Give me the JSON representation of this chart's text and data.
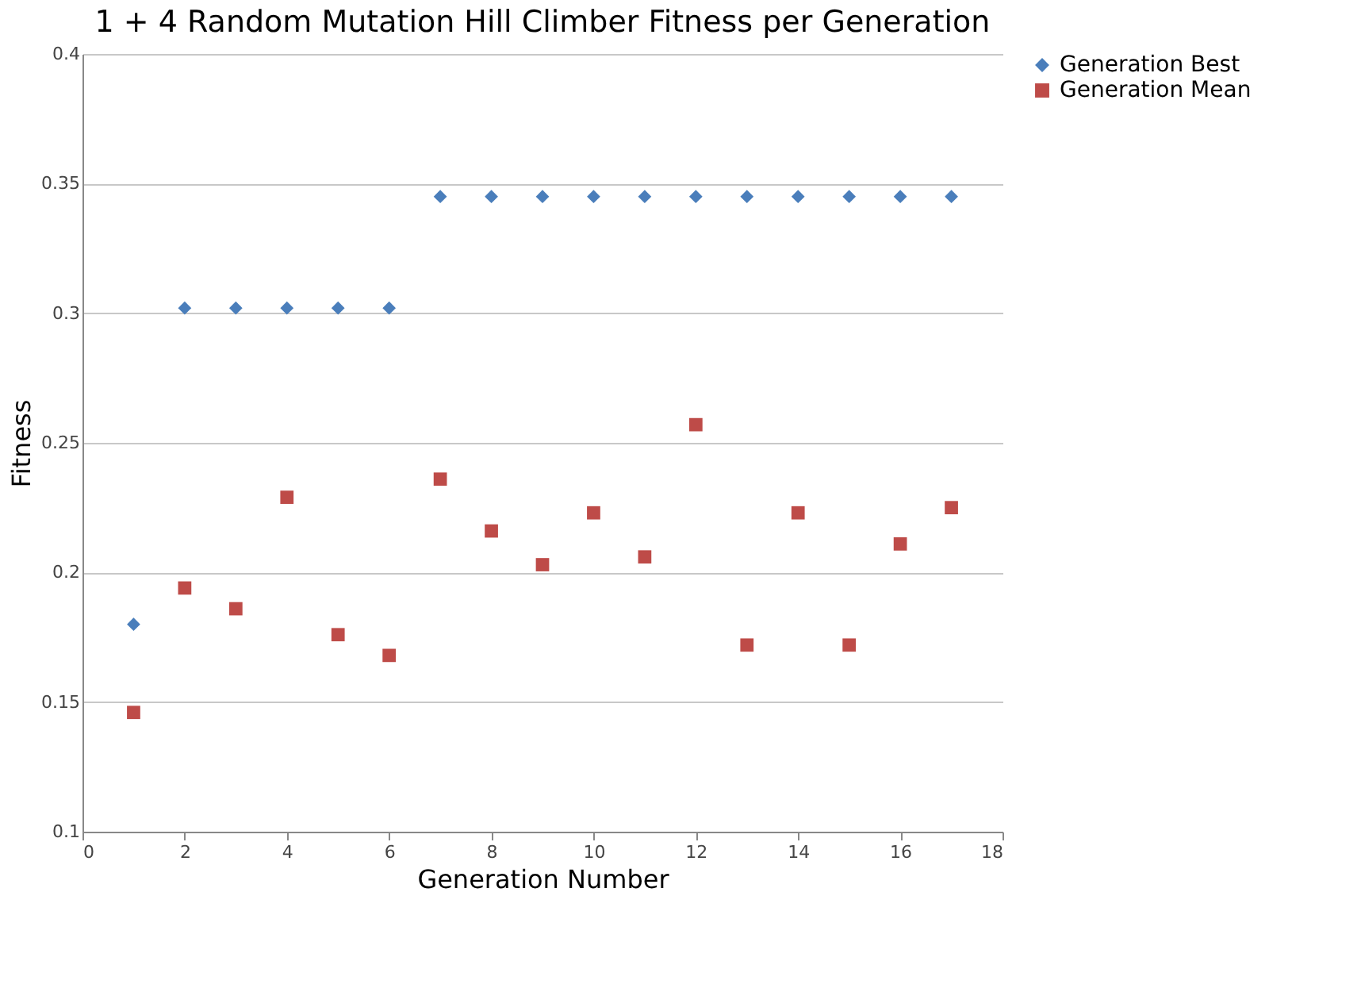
{
  "chart_data": {
    "type": "scatter",
    "title": "1 + 4 Random Mutation Hill Climber Fitness per Generation",
    "xlabel": "Generation Number",
    "ylabel": "Fitness",
    "x": [
      1,
      2,
      3,
      4,
      5,
      6,
      7,
      8,
      9,
      10,
      11,
      12,
      13,
      14,
      15,
      16,
      17
    ],
    "series": [
      {
        "name": "Generation Best",
        "color": "#4a7ebb",
        "marker": "diamond",
        "values": [
          0.18,
          0.302,
          0.302,
          0.302,
          0.302,
          0.302,
          0.345,
          0.345,
          0.345,
          0.345,
          0.345,
          0.345,
          0.345,
          0.345,
          0.345,
          0.345,
          0.345
        ]
      },
      {
        "name": "Generation Mean",
        "color": "#be4b48",
        "marker": "square",
        "values": [
          0.146,
          0.194,
          0.186,
          0.229,
          0.176,
          0.168,
          0.236,
          0.216,
          0.203,
          0.223,
          0.206,
          0.257,
          0.172,
          0.223,
          0.172,
          0.211,
          0.225
        ]
      }
    ],
    "xlim": [
      0,
      18
    ],
    "xticks": [
      0,
      2,
      4,
      6,
      8,
      10,
      12,
      14,
      16,
      18
    ],
    "ylim": [
      0.1,
      0.4
    ],
    "yticks": [
      0.1,
      0.15,
      0.2,
      0.25,
      0.3,
      0.35,
      0.4
    ],
    "grid": "y",
    "legend": "right"
  }
}
